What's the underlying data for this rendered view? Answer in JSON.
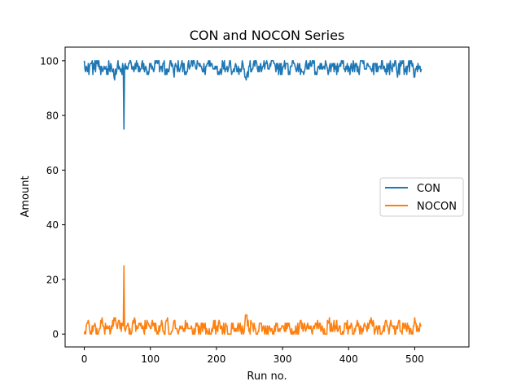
{
  "chart_data": {
    "type": "line",
    "title": "CON and NOCON Series",
    "xlabel": "Run no.",
    "ylabel": "Amount",
    "xlim": [
      -29,
      582
    ],
    "ylim": [
      -4.7,
      105.0
    ],
    "xticks": [
      0,
      100,
      200,
      300,
      400,
      500
    ],
    "yticks": [
      0,
      20,
      40,
      60,
      80,
      100
    ],
    "grid": false,
    "legend_position": "right",
    "x_range": [
      0,
      510
    ],
    "series": [
      {
        "name": "CON",
        "color": "#1f77b4",
        "x": [
          0,
          5,
          10,
          15,
          20,
          25,
          30,
          35,
          40,
          45,
          50,
          55,
          59,
          60,
          61,
          65,
          70,
          75,
          80,
          85,
          90,
          95,
          100,
          105,
          110,
          115,
          120,
          125,
          130,
          135,
          140,
          145,
          150,
          155,
          160,
          165,
          170,
          175,
          180,
          185,
          190,
          195,
          200,
          205,
          210,
          215,
          220,
          225,
          230,
          235,
          240,
          245,
          250,
          255,
          260,
          265,
          270,
          275,
          280,
          285,
          290,
          295,
          300,
          305,
          310,
          315,
          320,
          325,
          330,
          335,
          340,
          345,
          350,
          355,
          360,
          365,
          370,
          375,
          380,
          385,
          390,
          395,
          400,
          405,
          410,
          415,
          420,
          425,
          430,
          435,
          440,
          445,
          450,
          455,
          460,
          465,
          470,
          475,
          480,
          485,
          490,
          495,
          500,
          505,
          510
        ],
        "y": [
          100,
          96,
          99,
          97,
          100,
          95,
          98,
          97,
          99,
          94,
          98,
          96,
          97,
          75,
          98,
          97,
          100,
          96,
          98,
          97,
          99,
          95,
          98,
          96,
          100,
          97,
          99,
          95,
          100,
          96,
          98,
          97,
          99,
          96,
          98,
          100,
          97,
          99,
          96,
          98,
          100,
          97,
          98,
          96,
          99,
          97,
          100,
          96,
          98,
          97,
          99,
          93,
          98,
          97,
          100,
          96,
          98,
          99,
          97,
          100,
          96,
          98,
          97,
          99,
          96,
          100,
          97,
          98,
          96,
          99,
          97,
          100,
          96,
          98,
          97,
          100,
          96,
          99,
          97,
          98,
          100,
          96,
          98,
          97,
          99,
          96,
          100,
          97,
          98,
          96,
          99,
          97,
          100,
          96,
          98,
          97,
          100,
          96,
          99,
          97,
          98,
          100,
          94,
          99,
          97
        ]
      },
      {
        "name": "NOCON",
        "color": "#ff7f0e",
        "x": [
          0,
          5,
          10,
          15,
          20,
          25,
          30,
          35,
          40,
          45,
          50,
          55,
          59,
          60,
          61,
          65,
          70,
          75,
          80,
          85,
          90,
          95,
          100,
          105,
          110,
          115,
          120,
          125,
          130,
          135,
          140,
          145,
          150,
          155,
          160,
          165,
          170,
          175,
          180,
          185,
          190,
          195,
          200,
          205,
          210,
          215,
          220,
          225,
          230,
          235,
          240,
          245,
          250,
          255,
          260,
          265,
          270,
          275,
          280,
          285,
          290,
          295,
          300,
          305,
          310,
          315,
          320,
          325,
          330,
          335,
          340,
          345,
          350,
          355,
          360,
          365,
          370,
          375,
          380,
          385,
          390,
          395,
          400,
          405,
          410,
          415,
          420,
          425,
          430,
          435,
          440,
          445,
          450,
          455,
          460,
          465,
          470,
          475,
          480,
          485,
          490,
          495,
          500,
          505,
          510
        ],
        "y": [
          0,
          4,
          1,
          3,
          0,
          5,
          2,
          3,
          1,
          6,
          2,
          4,
          3,
          25,
          2,
          3,
          0,
          4,
          2,
          3,
          1,
          5,
          2,
          4,
          0,
          3,
          1,
          5,
          0,
          4,
          2,
          3,
          1,
          4,
          2,
          0,
          3,
          1,
          4,
          2,
          0,
          3,
          2,
          4,
          1,
          3,
          0,
          4,
          2,
          3,
          1,
          7,
          2,
          3,
          0,
          4,
          2,
          1,
          3,
          0,
          4,
          2,
          3,
          1,
          4,
          0,
          3,
          2,
          4,
          1,
          3,
          0,
          4,
          2,
          3,
          0,
          4,
          1,
          3,
          2,
          0,
          4,
          2,
          3,
          1,
          4,
          0,
          3,
          2,
          4,
          1,
          3,
          0,
          4,
          2,
          3,
          0,
          4,
          1,
          3,
          2,
          0,
          6,
          1,
          3
        ]
      }
    ]
  }
}
